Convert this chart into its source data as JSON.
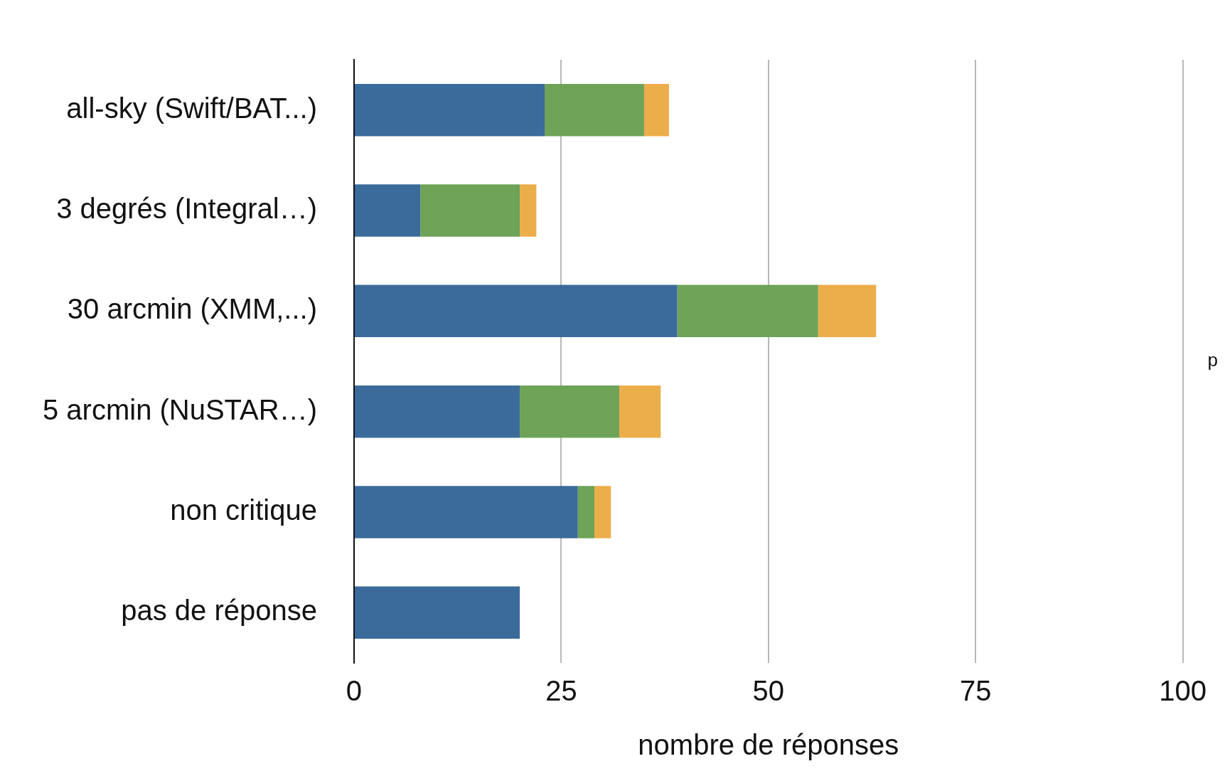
{
  "chart_data": {
    "type": "bar",
    "orientation": "horizontal",
    "stacked": true,
    "categories": [
      "all-sky (Swift/BAT...)",
      "3 degrés (Integral…)",
      "30 arcmin (XMM,...)",
      "5 arcmin (NuSTAR…)",
      "non critique",
      "pas de réponse"
    ],
    "series": [
      {
        "color": "#3b6b9b",
        "values": [
          23,
          8,
          39,
          20,
          27,
          20
        ]
      },
      {
        "color": "#6ea358",
        "values": [
          12,
          12,
          17,
          12,
          2,
          0
        ]
      },
      {
        "color": "#ecae4b",
        "values": [
          3,
          2,
          7,
          5,
          2,
          0
        ]
      }
    ],
    "xlim": [
      0,
      100
    ],
    "xticks": [
      0,
      25,
      50,
      75,
      100
    ],
    "xlabel": "nombre de réponses",
    "grid": "x",
    "legend": false,
    "annotations": [
      "p"
    ]
  }
}
